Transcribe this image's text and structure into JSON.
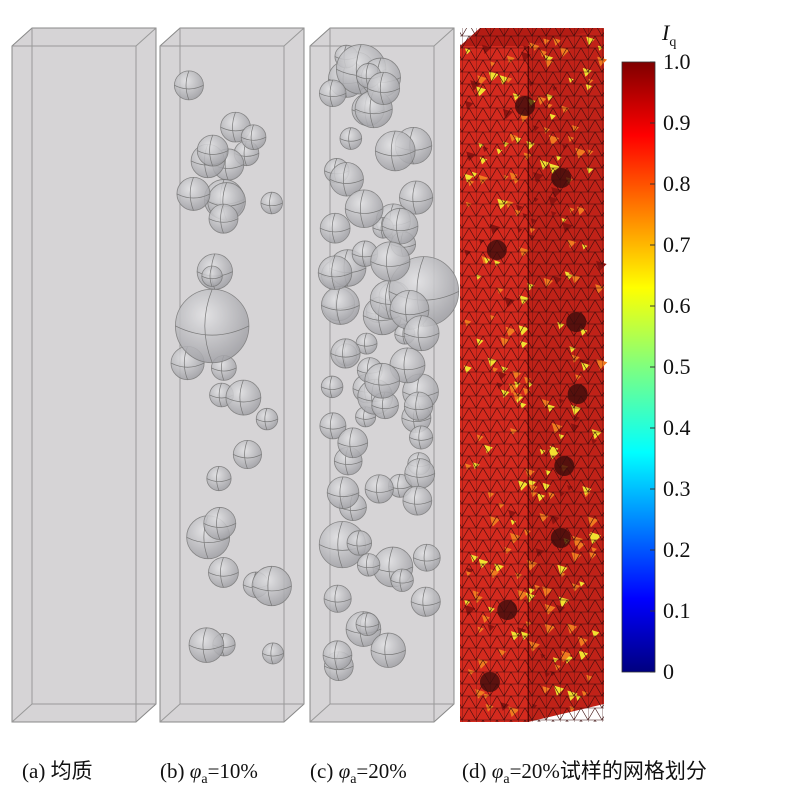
{
  "panels": [
    {
      "prefix": "(a) ",
      "text": "均质"
    },
    {
      "prefix": "(b) ",
      "symbol": "φ",
      "sub": "a",
      "text": "=10%"
    },
    {
      "prefix": "(c) ",
      "symbol": "φ",
      "sub": "a",
      "text": "=20%"
    },
    {
      "prefix": "(d) ",
      "symbol": "φ",
      "sub": "a",
      "text": "=20%试样的网格划分"
    }
  ],
  "colorbar": {
    "label": "I",
    "label_sub": "q",
    "range": [
      0,
      1
    ],
    "ticks": [
      0,
      0.1,
      0.2,
      0.3,
      0.4,
      0.5,
      0.6,
      0.7,
      0.8,
      0.9,
      {
        "value": 1,
        "label": "1.0"
      }
    ]
  }
}
